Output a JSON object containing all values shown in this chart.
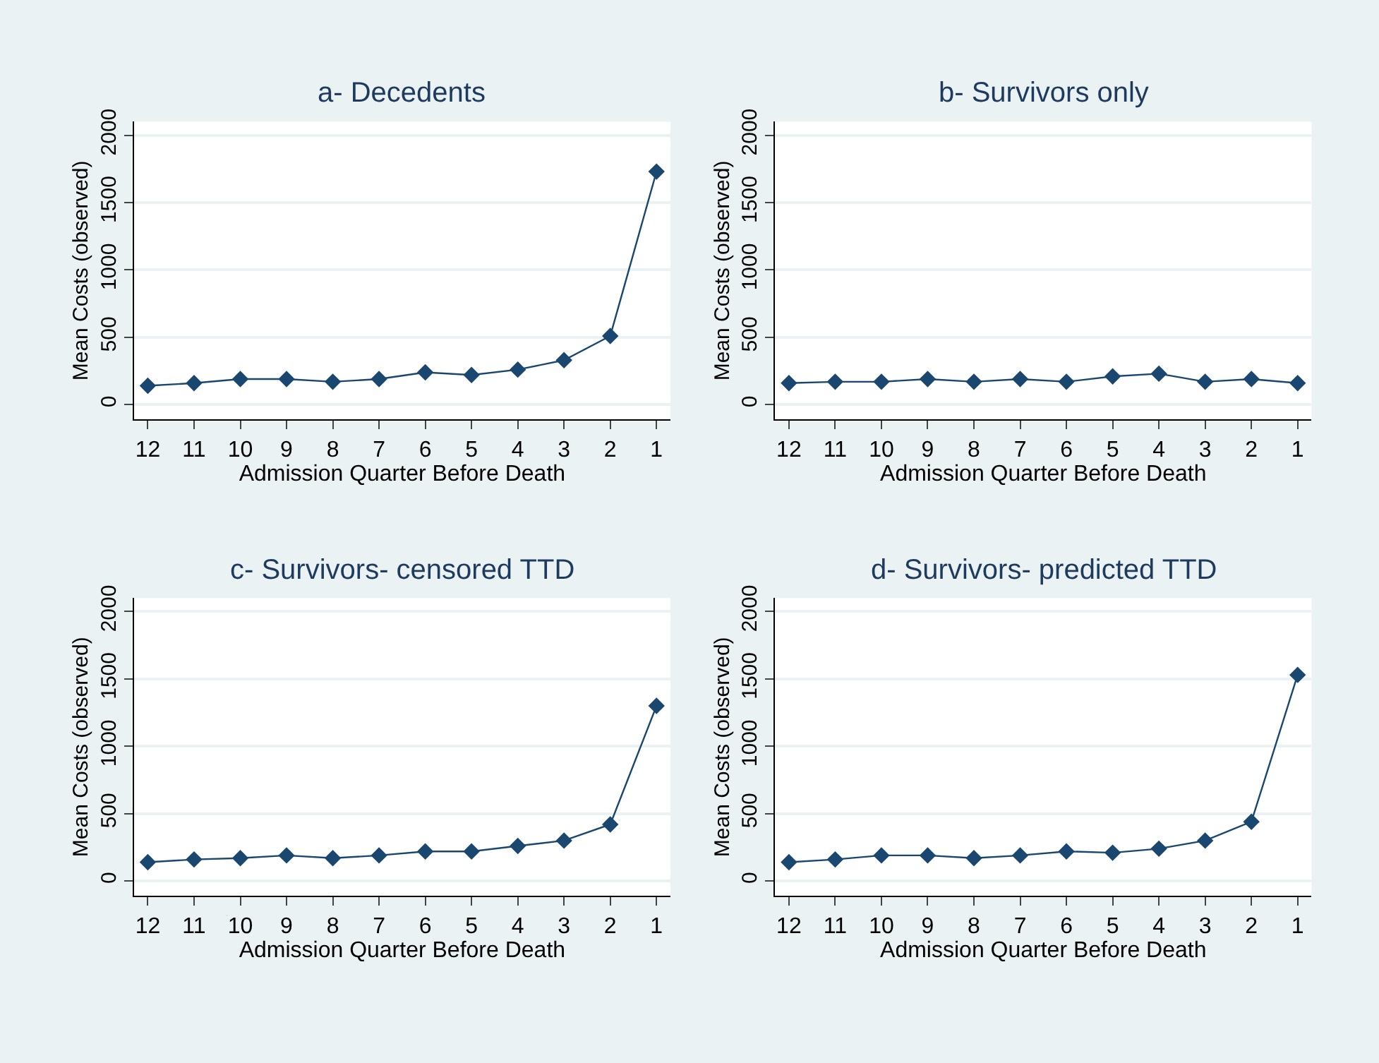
{
  "chart_data": [
    {
      "type": "line",
      "title": "a- Decedents",
      "xlabel": "Admission Quarter Before Death",
      "ylabel": "Mean Costs (observed)",
      "categories": [
        "12",
        "11",
        "10",
        "9",
        "8",
        "7",
        "6",
        "5",
        "4",
        "3",
        "2",
        "1"
      ],
      "series": [
        {
          "color": "#1a476f",
          "values": [
            140,
            160,
            190,
            190,
            170,
            190,
            240,
            220,
            260,
            330,
            510,
            1730
          ]
        }
      ],
      "ylim": [
        -110,
        2100
      ],
      "yticks": [
        0,
        500,
        1000,
        1500,
        2000
      ],
      "grid": "y",
      "marker": "diamond",
      "line_style": "solid"
    },
    {
      "type": "line",
      "title": "b- Survivors only",
      "xlabel": "Admission Quarter Before Death",
      "ylabel": "Mean Costs (observed)",
      "categories": [
        "12",
        "11",
        "10",
        "9",
        "8",
        "7",
        "6",
        "5",
        "4",
        "3",
        "2",
        "1"
      ],
      "series": [
        {
          "color": "#1a476f",
          "values": [
            160,
            170,
            170,
            190,
            170,
            190,
            170,
            210,
            230,
            170,
            190,
            160
          ]
        }
      ],
      "ylim": [
        -110,
        2100
      ],
      "yticks": [
        0,
        500,
        1000,
        1500,
        2000
      ],
      "grid": "y",
      "marker": "diamond",
      "line_style": "solid"
    },
    {
      "type": "line",
      "title": "c- Survivors- censored TTD",
      "xlabel": "Admission Quarter Before Death",
      "ylabel": "Mean Costs (observed)",
      "categories": [
        "12",
        "11",
        "10",
        "9",
        "8",
        "7",
        "6",
        "5",
        "4",
        "3",
        "2",
        "1"
      ],
      "series": [
        {
          "color": "#1a476f",
          "values": [
            140,
            160,
            170,
            190,
            170,
            190,
            220,
            220,
            260,
            300,
            420,
            1300
          ]
        }
      ],
      "ylim": [
        -110,
        2100
      ],
      "yticks": [
        0,
        500,
        1000,
        1500,
        2000
      ],
      "grid": "y",
      "marker": "diamond",
      "line_style": "solid"
    },
    {
      "type": "line",
      "title": "d- Survivors- predicted TTD",
      "xlabel": "Admission Quarter Before Death",
      "ylabel": "Mean Costs (observed)",
      "categories": [
        "12",
        "11",
        "10",
        "9",
        "8",
        "7",
        "6",
        "5",
        "4",
        "3",
        "2",
        "1"
      ],
      "series": [
        {
          "color": "#1a476f",
          "values": [
            140,
            160,
            190,
            190,
            170,
            190,
            220,
            210,
            240,
            300,
            440,
            1530
          ]
        }
      ],
      "ylim": [
        -110,
        2100
      ],
      "yticks": [
        0,
        500,
        1000,
        1500,
        2000
      ],
      "grid": "y",
      "marker": "diamond",
      "line_style": "solid"
    }
  ]
}
